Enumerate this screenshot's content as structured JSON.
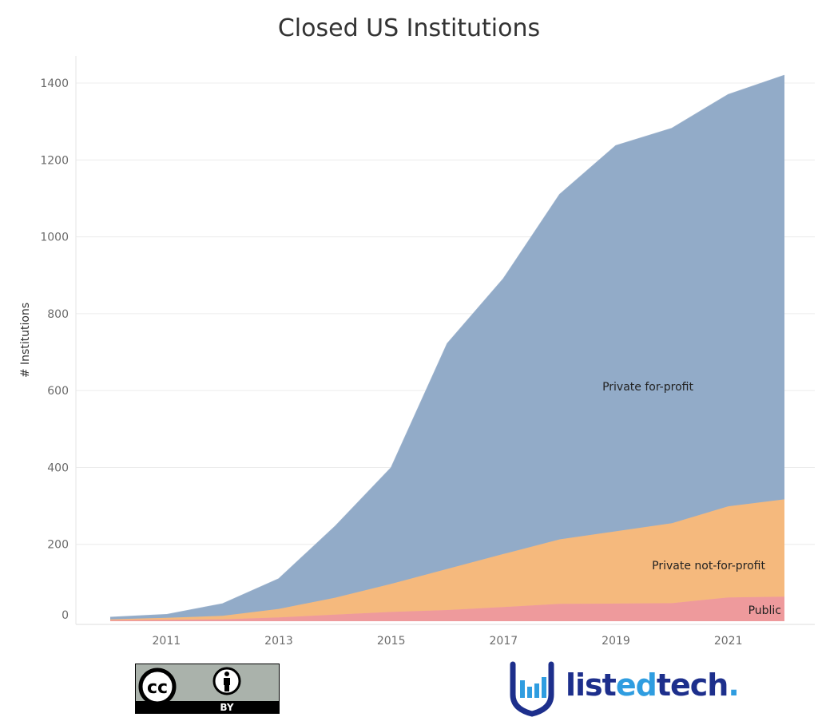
{
  "chart_data": {
    "type": "area",
    "stacked": true,
    "title": "Closed US Institutions",
    "ylabel": "# Institutions",
    "xlabel": "",
    "x": [
      2010,
      2011,
      2012,
      2013,
      2014,
      2015,
      2016,
      2017,
      2018,
      2019,
      2020,
      2021,
      2022
    ],
    "xticks": [
      "2011",
      "2013",
      "2015",
      "2017",
      "2019",
      "2021"
    ],
    "yticks": [
      "0",
      "200",
      "400",
      "600",
      "800",
      "1000",
      "1200",
      "1400"
    ],
    "ylim": [
      0,
      1400
    ],
    "grid": true,
    "series": [
      {
        "name": "Public",
        "color": "#ee9a9c",
        "values": [
          3,
          4,
          5,
          10,
          17,
          24,
          29,
          37,
          45,
          46,
          47,
          62,
          64
        ]
      },
      {
        "name": "Private not-for-profit",
        "color": "#f5b97d",
        "values": [
          2,
          5,
          9,
          22,
          44,
          73,
          107,
          138,
          168,
          188,
          208,
          237,
          253
        ]
      },
      {
        "name": "Private for-profit",
        "color": "#92abc8",
        "values": [
          5,
          8,
          31,
          78,
          185,
          302,
          586,
          716,
          897,
          1003,
          1027,
          1071,
          1103
        ]
      }
    ],
    "totals": [
      10,
      17,
      45,
      110,
      246,
      399,
      722,
      891,
      1110,
      1237,
      1282,
      1370,
      1420
    ]
  },
  "footer": {
    "license_text": "BY",
    "brand_part1": "list",
    "brand_part2": "ed",
    "brand_part3": "tech",
    "brand_dot": "."
  }
}
